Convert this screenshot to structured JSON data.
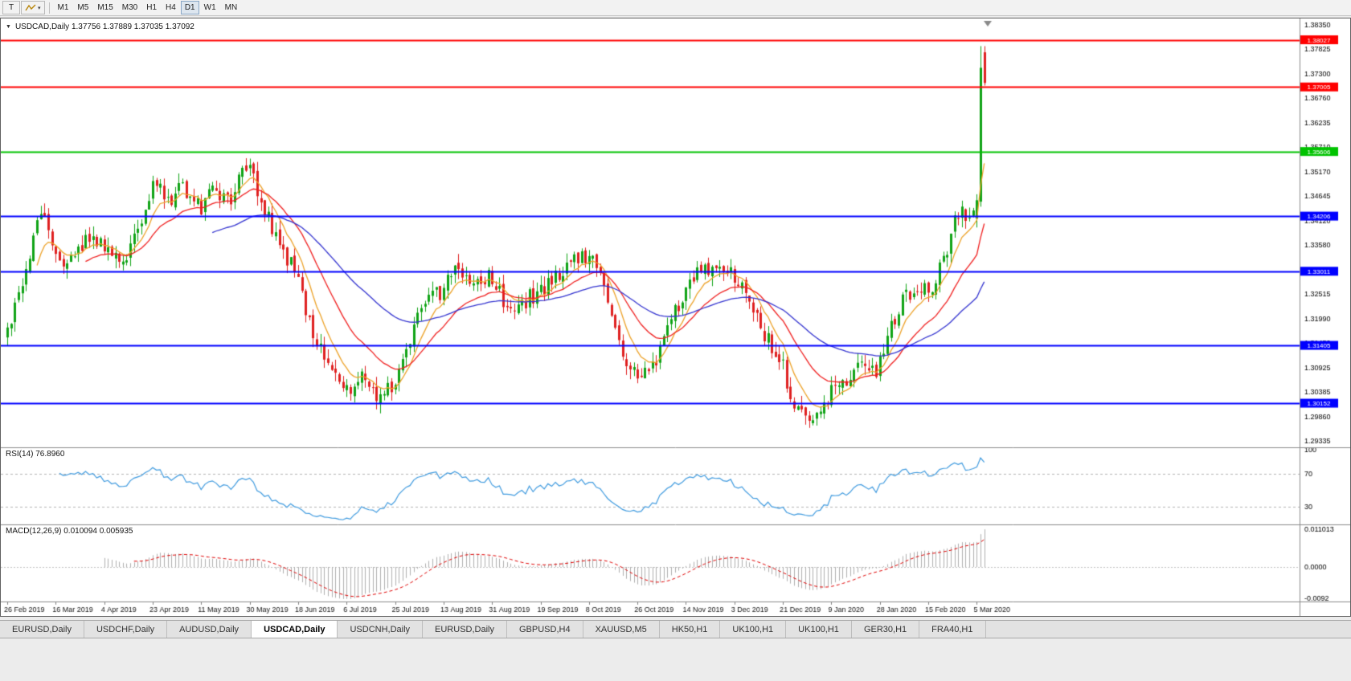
{
  "toolbar": {
    "pointer_tool_label": "T",
    "dropdown_caret": "▾",
    "timeframes": [
      "M1",
      "M5",
      "M15",
      "M30",
      "H1",
      "H4",
      "D1",
      "W1",
      "MN"
    ],
    "active_timeframe": "D1"
  },
  "chart": {
    "collapse_glyph": "▼",
    "header": "USDCAD,Daily 1.37756 1.37889 1.37035 1.37092",
    "symbol": "USDCAD",
    "period": "Daily",
    "open": "1.37756",
    "high": "1.37889",
    "low": "1.37035",
    "close": "1.37092",
    "rsi_label": "RSI(14) 76.8960",
    "macd_label": "MACD(12,26,9) 0.010094 0.005935"
  },
  "chart_data": {
    "type": "candlestick",
    "symbol": "USDCAD",
    "timeframe": "Daily",
    "price_axis_labels": [
      "1.38350",
      "1.37825",
      "1.37300",
      "1.36760",
      "1.36235",
      "1.35710",
      "1.35170",
      "1.34645",
      "1.34120",
      "1.33580",
      "1.33055",
      "1.32515",
      "1.31990",
      "1.31450",
      "1.30925",
      "1.30385",
      "1.29860",
      "1.29335"
    ],
    "price_range": {
      "top": 1.3835,
      "bottom": 1.29335
    },
    "date_labels": [
      "26 Feb 2019",
      "16 Mar 2019",
      "4 Apr 2019",
      "23 Apr 2019",
      "11 May 2019",
      "30 May 2019",
      "18 Jun 2019",
      "6 Jul 2019",
      "25 Jul 2019",
      "13 Aug 2019",
      "31 Aug 2019",
      "19 Sep 2019",
      "8 Oct 2019",
      "26 Oct 2019",
      "14 Nov 2019",
      "3 Dec 2019",
      "21 Dec 2019",
      "9 Jan 2020",
      "28 Jan 2020",
      "15 Feb 2020",
      "5 Mar 2020"
    ],
    "hlines": [
      {
        "price": 1.38027,
        "label": "1.38027",
        "color": "#ff0000"
      },
      {
        "price": 1.37005,
        "label": "1.37005",
        "color": "#ff0000"
      },
      {
        "price": 1.35606,
        "label": "1.35606",
        "color": "#00c300"
      },
      {
        "price": 1.34206,
        "label": "1.34206",
        "color": "#0000ff"
      },
      {
        "price": 1.33011,
        "label": "1.33011",
        "color": "#0000ff"
      },
      {
        "price": 1.31405,
        "label": "1.31405",
        "color": "#0000ff"
      },
      {
        "price": 1.30152,
        "label": "1.30152",
        "color": "#0000ff"
      }
    ],
    "price_path": [
      [
        0,
        1.316
      ],
      [
        3,
        1.324
      ],
      [
        6,
        1.333
      ],
      [
        9,
        1.3445
      ],
      [
        13,
        1.333
      ],
      [
        17,
        1.3318
      ],
      [
        21,
        1.3365
      ],
      [
        26,
        1.335
      ],
      [
        30,
        1.3312
      ],
      [
        34,
        1.3372
      ],
      [
        39,
        1.3492
      ],
      [
        43,
        1.3452
      ],
      [
        47,
        1.3482
      ],
      [
        52,
        1.3442
      ],
      [
        56,
        1.3478
      ],
      [
        60,
        1.3448
      ],
      [
        63,
        1.3525
      ],
      [
        65,
        1.3548
      ],
      [
        67,
        1.348
      ],
      [
        71,
        1.3392
      ],
      [
        75,
        1.3332
      ],
      [
        78,
        1.3272
      ],
      [
        82,
        1.3175
      ],
      [
        86,
        1.3085
      ],
      [
        91,
        1.3045
      ],
      [
        95,
        1.3078
      ],
      [
        99,
        1.303
      ],
      [
        103,
        1.3055
      ],
      [
        107,
        1.3132
      ],
      [
        111,
        1.3218
      ],
      [
        115,
        1.3248
      ],
      [
        117,
        1.3268
      ],
      [
        121,
        1.3312
      ],
      [
        125,
        1.3265
      ],
      [
        130,
        1.3292
      ],
      [
        134,
        1.3215
      ],
      [
        138,
        1.3232
      ],
      [
        143,
        1.3262
      ],
      [
        147,
        1.3292
      ],
      [
        151,
        1.3322
      ],
      [
        155,
        1.3338
      ],
      [
        159,
        1.3292
      ],
      [
        163,
        1.3162
      ],
      [
        167,
        1.3092
      ],
      [
        169,
        1.3062
      ],
      [
        173,
        1.3092
      ],
      [
        177,
        1.3182
      ],
      [
        181,
        1.3252
      ],
      [
        185,
        1.3295
      ],
      [
        190,
        1.3302
      ],
      [
        195,
        1.3292
      ],
      [
        199,
        1.3232
      ],
      [
        203,
        1.3168
      ],
      [
        207,
        1.3118
      ],
      [
        211,
        1.3012
      ],
      [
        215,
        1.2958
      ],
      [
        218,
        1.2988
      ],
      [
        221,
        1.3048
      ],
      [
        225,
        1.3062
      ],
      [
        229,
        1.3098
      ],
      [
        233,
        1.308
      ],
      [
        237,
        1.3182
      ],
      [
        241,
        1.3255
      ],
      [
        245,
        1.3272
      ],
      [
        247,
        1.3252
      ],
      [
        250,
        1.3302
      ],
      [
        253,
        1.3382
      ],
      [
        256,
        1.3448
      ],
      [
        258,
        1.3402
      ],
      [
        260,
        1.3435
      ],
      [
        262,
        1.371
      ]
    ],
    "last_candles": [
      {
        "o": 1.3415,
        "h": 1.3468,
        "l": 1.3396,
        "c": 1.3455
      },
      {
        "o": 1.3452,
        "h": 1.3789,
        "l": 1.3441,
        "c": 1.3742
      },
      {
        "o": 1.37756,
        "h": 1.37889,
        "l": 1.37035,
        "c": 1.37092
      }
    ],
    "moving_averages": [
      {
        "period": 8,
        "type": "ema",
        "color": "#eda228"
      },
      {
        "period": 21,
        "type": "ema",
        "color": "#f02020"
      },
      {
        "period": 55,
        "type": "ema",
        "color": "#3434d0"
      }
    ],
    "rsi": {
      "period": 14,
      "current": "76.8960",
      "levels": [
        70,
        30
      ],
      "axis_labels": [
        "100",
        "70",
        "30"
      ],
      "axis_values": [
        100,
        70,
        30
      ]
    },
    "macd": {
      "fast": 12,
      "slow": 26,
      "signal": 9,
      "current_macd": "0.010094",
      "current_signal": "0.005935",
      "axis_top_label": "0.011013",
      "axis_zero_label": "0.0000",
      "axis_bottom_label": "-0.0092",
      "axis_top": 0.011013,
      "axis_bottom": -0.0092
    }
  },
  "tabs": {
    "active_index": 3,
    "items": [
      {
        "label": "EURUSD,Daily"
      },
      {
        "label": "USDCHF,Daily"
      },
      {
        "label": "AUDUSD,Daily"
      },
      {
        "label": "USDCAD,Daily"
      },
      {
        "label": "USDCNH,Daily"
      },
      {
        "label": "EURUSD,Daily"
      },
      {
        "label": "GBPUSD,H4"
      },
      {
        "label": "XAUUSD,M5"
      },
      {
        "label": "HK50,H1"
      },
      {
        "label": "UK100,H1"
      },
      {
        "label": "UK100,H1"
      },
      {
        "label": "GER30,H1"
      },
      {
        "label": "FRA40,H1"
      }
    ]
  },
  "colors": {
    "up": "#0fa315",
    "down": "#df2020",
    "rsi": "#3e9adf",
    "macd_hist": "#b0b0b0",
    "macd_signal": "#e00000",
    "panel_divider": "#8c8c8c",
    "axis_text": "#000000",
    "chart_bg": "#ffffff",
    "ui_bg": "#ececec"
  }
}
